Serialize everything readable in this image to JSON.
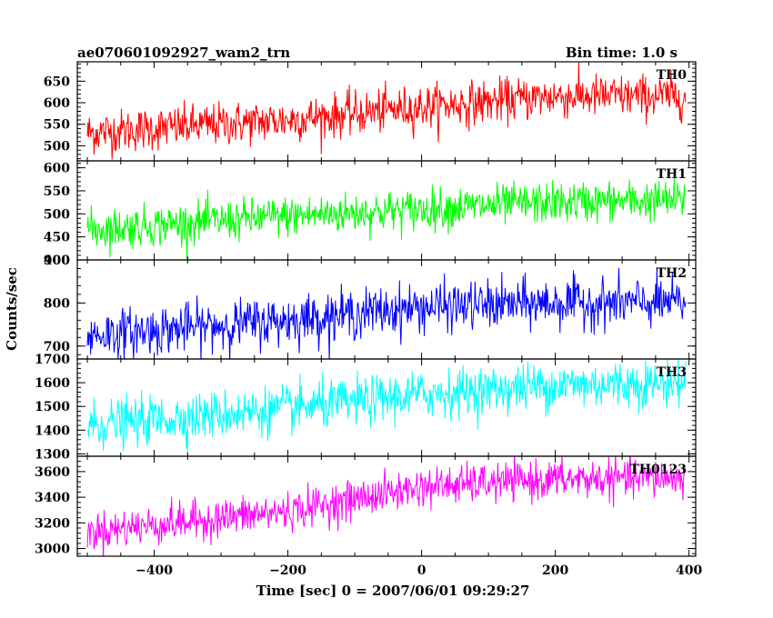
{
  "chart_data": {
    "type": "line",
    "title_left": "ae070601092927_wam2_trn",
    "title_right": "Bin time: 1.0 s",
    "xlabel": "Time [sec] 0 = 2007/06/01 09:29:27",
    "ylabel": "Counts/sec",
    "xlim": [
      -515,
      410
    ],
    "x_ticks": [
      -400,
      -200,
      0,
      200,
      400
    ],
    "x_data_range": [
      -500,
      395
    ],
    "bin_time_s": 1.0,
    "panels": [
      {
        "name": "TH0",
        "color": "#ff0000",
        "ylim": [
          465,
          695
        ],
        "y_ticks": [
          500,
          550,
          600,
          650
        ],
        "trend": [
          {
            "x": -500,
            "y": 530
          },
          {
            "x": -200,
            "y": 560
          },
          {
            "x": 0,
            "y": 590
          },
          {
            "x": 200,
            "y": 615
          },
          {
            "x": 395,
            "y": 615
          }
        ],
        "noise_sd": 25
      },
      {
        "name": "TH1",
        "color": "#00ff00",
        "ylim": [
          400,
          615
        ],
        "y_ticks": [
          400,
          450,
          500,
          550,
          600
        ],
        "trend": [
          {
            "x": -500,
            "y": 465
          },
          {
            "x": -200,
            "y": 495
          },
          {
            "x": 0,
            "y": 510
          },
          {
            "x": 200,
            "y": 525
          },
          {
            "x": 395,
            "y": 530
          }
        ],
        "noise_sd": 22
      },
      {
        "name": "TH2",
        "color": "#0000ff",
        "ylim": [
          670,
          900
        ],
        "y_ticks": [
          700,
          800,
          900
        ],
        "trend": [
          {
            "x": -500,
            "y": 725
          },
          {
            "x": -200,
            "y": 760
          },
          {
            "x": 0,
            "y": 790
          },
          {
            "x": 200,
            "y": 800
          },
          {
            "x": 395,
            "y": 800
          }
        ],
        "noise_sd": 28
      },
      {
        "name": "TH3",
        "color": "#00ffff",
        "ylim": [
          1290,
          1700
        ],
        "y_ticks": [
          1300,
          1400,
          1500,
          1600,
          1700
        ],
        "trend": [
          {
            "x": -500,
            "y": 1420
          },
          {
            "x": -200,
            "y": 1490
          },
          {
            "x": 0,
            "y": 1550
          },
          {
            "x": 200,
            "y": 1590
          },
          {
            "x": 395,
            "y": 1600
          }
        ],
        "noise_sd": 50
      },
      {
        "name": "TH0123",
        "color": "#ff00ff",
        "ylim": [
          2940,
          3720
        ],
        "y_ticks": [
          3000,
          3200,
          3400,
          3600
        ],
        "trend": [
          {
            "x": -500,
            "y": 3130
          },
          {
            "x": -200,
            "y": 3290
          },
          {
            "x": 0,
            "y": 3480
          },
          {
            "x": 200,
            "y": 3540
          },
          {
            "x": 395,
            "y": 3550
          }
        ],
        "noise_sd": 75
      }
    ]
  }
}
